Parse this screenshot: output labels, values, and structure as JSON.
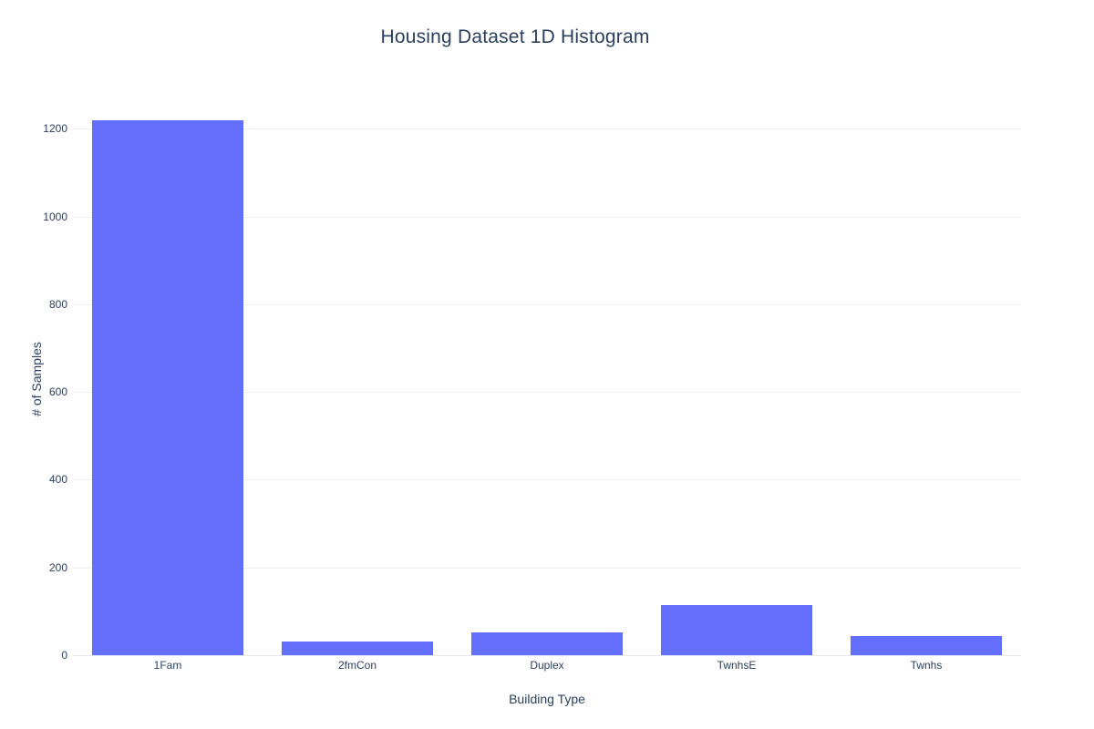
{
  "chart_data": {
    "type": "bar",
    "title": "Housing Dataset 1D Histogram",
    "xlabel": "Building Type",
    "ylabel": "# of Samples",
    "categories": [
      "1Fam",
      "2fmCon",
      "Duplex",
      "TwnhsE",
      "Twnhs"
    ],
    "values": [
      1220,
      31,
      52,
      114,
      43
    ],
    "yticks": [
      0,
      200,
      400,
      600,
      800,
      1000,
      1200
    ],
    "ylim": [
      0,
      1263
    ],
    "grid": true,
    "legend": "none",
    "colors": {
      "bar": "#636efa",
      "text": "#2a3f5f",
      "grid": "#ebeff6",
      "zeroline": "#e4e9f1",
      "background": "#ffffff"
    }
  }
}
